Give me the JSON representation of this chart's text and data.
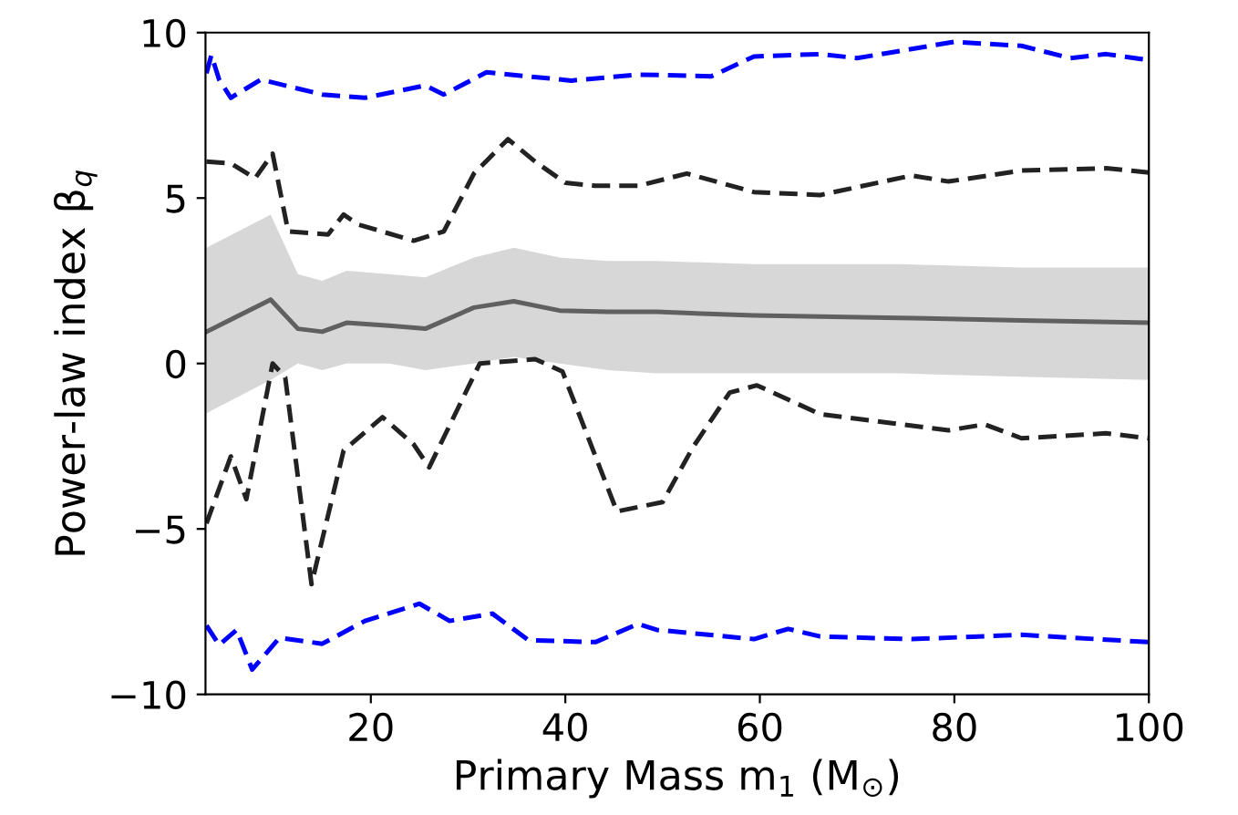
{
  "chart_data": {
    "type": "line",
    "xlabel": "Primary Mass m$_{1}$ (M$_{⊙}$)",
    "ylabel": "Power-law index β$_{q}$",
    "xlim": [
      3,
      100
    ],
    "ylim": [
      -10,
      10
    ],
    "xticks": [
      20,
      40,
      60,
      80,
      100
    ],
    "yticks": [
      -10,
      -5,
      0,
      5,
      10
    ],
    "grid": false,
    "legend": false,
    "marker": "none",
    "series": [
      {
        "color": "#606060",
        "line_style": "solid",
        "x": [
          3.1,
          9.7,
          12.5,
          15,
          17.5,
          21.9,
          25.6,
          30.6,
          34.7,
          39.4,
          44.4,
          49.4,
          59.4,
          74.4,
          86.9,
          100
        ],
        "values": [
          0.96,
          1.93,
          1.05,
          0.96,
          1.23,
          1.14,
          1.05,
          1.69,
          1.88,
          1.6,
          1.56,
          1.56,
          1.45,
          1.38,
          1.3,
          1.23
        ],
        "lower": [
          -1.5,
          -0.5,
          0,
          -0.2,
          0,
          0,
          -0.2,
          0,
          0.2,
          0,
          -0.2,
          -0.3,
          -0.3,
          -0.3,
          -0.4,
          -0.5
        ],
        "upper": [
          3.5,
          4.5,
          2.7,
          2.5,
          2.8,
          2.7,
          2.6,
          3.2,
          3.5,
          3.2,
          3.1,
          3.1,
          3.0,
          3.0,
          2.9,
          2.9
        ]
      },
      {
        "color": "#222222",
        "line_style": "dashed",
        "x": [
          3.1,
          5.6,
          8.1,
          9.9,
          11.5,
          15.6,
          17.2,
          18.7,
          24.4,
          27.5,
          30.6,
          34.1,
          36.9,
          40,
          43.1,
          47.5,
          52.5,
          59.4,
          66.2,
          75.6,
          79.4,
          86.9,
          95.6,
          100
        ],
        "values": [
          6.1,
          6.05,
          5.6,
          6.34,
          3.99,
          3.9,
          4.5,
          4.2,
          3.71,
          3.99,
          5.74,
          6.78,
          6.1,
          5.46,
          5.37,
          5.37,
          5.74,
          5.18,
          5.09,
          5.68,
          5.5,
          5.83,
          5.9,
          5.77
        ]
      },
      {
        "color": "#222222",
        "line_style": "dashed",
        "x": [
          3.1,
          5.6,
          7.2,
          9.9,
          11.2,
          13.9,
          17.2,
          21.2,
          24.4,
          26,
          31.2,
          36.9,
          39.7,
          45.3,
          50,
          53.1,
          56.9,
          59.7,
          66.2,
          79.4,
          83.1,
          86.9,
          95.6,
          100
        ],
        "values": [
          -4.83,
          -2.81,
          -4.1,
          0,
          -0.42,
          -6.67,
          -2.63,
          -1.62,
          -2.44,
          -3.14,
          0,
          0.13,
          -0.24,
          -4.47,
          -4.19,
          -2.54,
          -0.88,
          -0.66,
          -1.53,
          -2.02,
          -1.84,
          -2.26,
          -2.11,
          -2.26
        ]
      },
      {
        "color": "#0000ff",
        "line_style": "dashed",
        "x": [
          3.1,
          3.6,
          4.4,
          5.6,
          8.7,
          15,
          19.4,
          25.6,
          27.5,
          31.9,
          40.6,
          47.5,
          55,
          59.4,
          66.2,
          70,
          80,
          86.9,
          91.9,
          95.6,
          100
        ],
        "values": [
          8.77,
          9.32,
          8.58,
          8.03,
          8.58,
          8.13,
          8.03,
          8.4,
          8.13,
          8.8,
          8.55,
          8.73,
          8.68,
          9.28,
          9.35,
          9.23,
          9.72,
          9.6,
          9.23,
          9.35,
          9.17
        ]
      },
      {
        "color": "#0000ff",
        "line_style": "dashed",
        "x": [
          3.1,
          4.4,
          6.2,
          7.8,
          10.6,
          15,
          19.4,
          25,
          28.1,
          32.5,
          36.2,
          43.1,
          47.5,
          49.4,
          59.4,
          62.9,
          66.2,
          75.6,
          86.9,
          100
        ],
        "values": [
          -7.92,
          -8.51,
          -8.05,
          -9.25,
          -8.29,
          -8.47,
          -7.78,
          -7.26,
          -7.78,
          -7.56,
          -8.36,
          -8.42,
          -7.87,
          -8.05,
          -8.33,
          -8.02,
          -8.25,
          -8.33,
          -8.2,
          -8.42
        ]
      }
    ]
  }
}
